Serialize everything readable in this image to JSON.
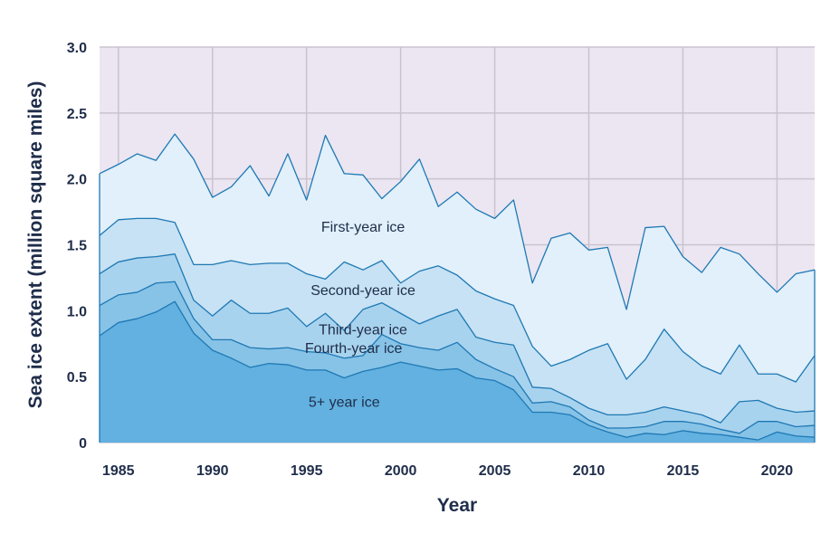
{
  "chart_data": {
    "type": "area",
    "stacked": true,
    "title": "",
    "xlabel": "Year",
    "ylabel": "Sea ice extent (million square miles)",
    "xlim": [
      1984,
      2022
    ],
    "ylim": [
      0,
      3.0
    ],
    "xticks": [
      "1985",
      "1990",
      "1995",
      "2000",
      "2005",
      "2010",
      "2015",
      "2020"
    ],
    "yticks": [
      "0",
      "0.5",
      "1.0",
      "1.5",
      "2.0",
      "2.5",
      "3.0"
    ],
    "grid": true,
    "x": [
      1984,
      1985,
      1986,
      1987,
      1988,
      1989,
      1990,
      1991,
      1992,
      1993,
      1994,
      1995,
      1996,
      1997,
      1998,
      1999,
      2000,
      2001,
      2002,
      2003,
      2004,
      2005,
      2006,
      2007,
      2008,
      2009,
      2010,
      2011,
      2012,
      2013,
      2014,
      2015,
      2016,
      2017,
      2018,
      2019,
      2020,
      2021,
      2022
    ],
    "series": [
      {
        "name": "5+ year ice",
        "color": "#62b1e0",
        "values": [
          0.81,
          0.91,
          0.94,
          0.99,
          1.07,
          0.83,
          0.7,
          0.64,
          0.57,
          0.6,
          0.59,
          0.55,
          0.55,
          0.49,
          0.54,
          0.57,
          0.61,
          0.58,
          0.55,
          0.56,
          0.49,
          0.47,
          0.4,
          0.23,
          0.23,
          0.21,
          0.13,
          0.08,
          0.04,
          0.07,
          0.06,
          0.09,
          0.07,
          0.06,
          0.04,
          0.02,
          0.08,
          0.05,
          0.04
        ]
      },
      {
        "name": "Fourth-year ice",
        "color": "#86c3e7",
        "values": [
          0.23,
          0.21,
          0.2,
          0.22,
          0.15,
          0.11,
          0.08,
          0.14,
          0.15,
          0.11,
          0.13,
          0.14,
          0.13,
          0.15,
          0.12,
          0.25,
          0.14,
          0.14,
          0.15,
          0.2,
          0.14,
          0.09,
          0.1,
          0.07,
          0.08,
          0.06,
          0.04,
          0.03,
          0.07,
          0.05,
          0.1,
          0.07,
          0.07,
          0.04,
          0.03,
          0.14,
          0.08,
          0.07,
          0.09
        ]
      },
      {
        "name": "Third-year ice",
        "color": "#a8d3ee",
        "values": [
          0.24,
          0.25,
          0.26,
          0.2,
          0.21,
          0.14,
          0.18,
          0.3,
          0.26,
          0.27,
          0.3,
          0.19,
          0.3,
          0.21,
          0.35,
          0.24,
          0.23,
          0.18,
          0.26,
          0.25,
          0.17,
          0.2,
          0.24,
          0.12,
          0.1,
          0.07,
          0.09,
          0.1,
          0.1,
          0.11,
          0.11,
          0.08,
          0.07,
          0.05,
          0.24,
          0.16,
          0.1,
          0.11,
          0.11
        ]
      },
      {
        "name": "Second-year ice",
        "color": "#c6e2f4",
        "values": [
          0.29,
          0.32,
          0.3,
          0.29,
          0.24,
          0.27,
          0.39,
          0.3,
          0.37,
          0.38,
          0.34,
          0.4,
          0.26,
          0.52,
          0.3,
          0.32,
          0.23,
          0.4,
          0.38,
          0.26,
          0.35,
          0.33,
          0.3,
          0.31,
          0.17,
          0.29,
          0.44,
          0.54,
          0.27,
          0.4,
          0.59,
          0.45,
          0.37,
          0.37,
          0.43,
          0.2,
          0.26,
          0.23,
          0.42
        ]
      },
      {
        "name": "First-year ice",
        "color": "#e1f0fa",
        "values": [
          0.47,
          0.42,
          0.49,
          0.44,
          0.67,
          0.8,
          0.51,
          0.56,
          0.75,
          0.51,
          0.83,
          0.56,
          1.09,
          0.67,
          0.72,
          0.47,
          0.77,
          0.85,
          0.45,
          0.63,
          0.62,
          0.61,
          0.8,
          0.48,
          0.97,
          0.96,
          0.76,
          0.73,
          0.53,
          1.0,
          0.78,
          0.72,
          0.71,
          0.96,
          0.69,
          0.76,
          0.62,
          0.82,
          0.65
        ]
      }
    ],
    "annotations": [
      "First-year ice",
      "Second-year ice",
      "Third-year ice",
      "Fourth-year ice",
      "5+ year ice"
    ],
    "colors": {
      "plot_background": "#ebe6f1",
      "gridline": "#c9c3d0",
      "outline": "#1f78b4",
      "text": "#1f2d4a"
    }
  }
}
